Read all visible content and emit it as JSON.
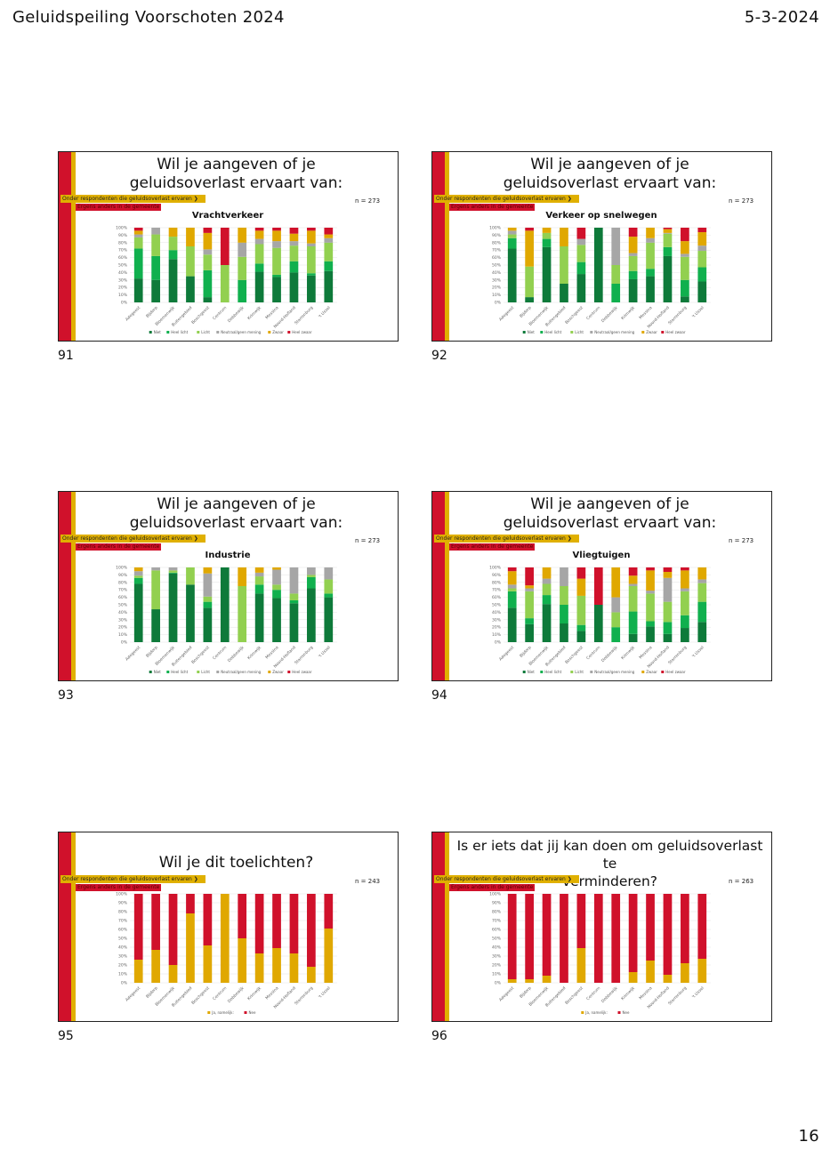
{
  "header": {
    "title": "Geluidspeiling  Voorschoten  2024",
    "date": "5-3-2024",
    "page_number": "16"
  },
  "colors": {
    "niet": "#0e7a3a",
    "heel_licht": "#10b04e",
    "licht": "#92d050",
    "neutraal": "#a6a6a6",
    "zwaar": "#e0a800",
    "heel_zwaar": "#d0112b",
    "stripe_red": "#d0112b",
    "stripe_yellow": "#e0b000"
  },
  "common": {
    "tag_filter": "Onder respondenten die geluidsoverlast ervaren  ❯",
    "tag_location": "Ergens anders in de gemeente",
    "categories": [
      "Adegeest",
      "Bijdorp",
      "Bloemenwijk",
      "Buitengebied",
      "Boschgeest",
      "Centrum",
      "Dobbewijk",
      "Krimwijk",
      "Messina",
      "Noord-Hofland",
      "Starrenburg",
      "'t Ussel"
    ],
    "ytick_labels": [
      "0%",
      "10%",
      "20%",
      "30%",
      "40%",
      "50%",
      "60%",
      "70%",
      "80%",
      "90%",
      "100%"
    ]
  },
  "slides": [
    {
      "number": "91",
      "title_lines": [
        "Wil je aangeven of je",
        "geluidsoverlast ervaart van:"
      ],
      "n": "n = 273"
    },
    {
      "number": "92",
      "title_lines": [
        "Wil je aangeven of je",
        "geluidsoverlast ervaart van:"
      ],
      "n": "n = 273"
    },
    {
      "number": "93",
      "title_lines": [
        "Wil je aangeven of je",
        "geluidsoverlast ervaart van:"
      ],
      "n": "n = 273"
    },
    {
      "number": "94",
      "title_lines": [
        "Wil je aangeven of je",
        "geluidsoverlast ervaart van:"
      ],
      "n": "n = 273"
    },
    {
      "number": "95",
      "title_lines": [
        "Wil je dit toelichten?"
      ],
      "n": "n = 243"
    },
    {
      "number": "96",
      "title_lines": [
        "Is er iets dat jij kan doen om geluidsoverlast te",
        "verminderen?"
      ],
      "n": "n = 263"
    }
  ],
  "chart_data": [
    {
      "type": "bar",
      "stacked": true,
      "title": "Vrachtverkeer",
      "ylim": [
        0,
        100
      ],
      "legend": "bottom",
      "series": [
        {
          "name": "Niet",
          "values": [
            32,
            30,
            58,
            35,
            7,
            0,
            0,
            41,
            34,
            40,
            36,
            42
          ]
        },
        {
          "name": "Heel licht",
          "values": [
            40,
            32,
            12,
            0,
            36,
            0,
            30,
            11,
            3,
            15,
            3,
            13
          ]
        },
        {
          "name": "Licht",
          "values": [
            15,
            29,
            18,
            40,
            21,
            50,
            31,
            26,
            36,
            21,
            36,
            25
          ]
        },
        {
          "name": "Neutraal/geen mening",
          "values": [
            4,
            9,
            0,
            0,
            7,
            0,
            19,
            7,
            9,
            6,
            4,
            6
          ]
        },
        {
          "name": "Zwaar",
          "values": [
            5,
            0,
            12,
            25,
            22,
            0,
            20,
            11,
            14,
            10,
            17,
            5
          ]
        },
        {
          "name": "Heel zwaar",
          "values": [
            4,
            0,
            0,
            0,
            7,
            50,
            0,
            4,
            4,
            8,
            4,
            9
          ]
        }
      ]
    },
    {
      "type": "bar",
      "stacked": true,
      "title": "Verkeer op snelwegen",
      "ylim": [
        0,
        100
      ],
      "legend": "bottom",
      "series": [
        {
          "name": "Niet",
          "values": [
            72,
            7,
            74,
            25,
            38,
            100,
            0,
            31,
            35,
            62,
            8,
            28
          ]
        },
        {
          "name": "Heel licht",
          "values": [
            14,
            0,
            11,
            0,
            16,
            0,
            25,
            11,
            10,
            12,
            22,
            19
          ]
        },
        {
          "name": "Licht",
          "values": [
            5,
            41,
            8,
            50,
            23,
            0,
            25,
            20,
            35,
            18,
            31,
            22
          ]
        },
        {
          "name": "Neutraal/geen mening",
          "values": [
            5,
            0,
            0,
            0,
            8,
            0,
            50,
            4,
            6,
            1,
            4,
            7
          ]
        },
        {
          "name": "Zwaar",
          "values": [
            4,
            48,
            7,
            25,
            0,
            0,
            0,
            22,
            14,
            5,
            17,
            18
          ]
        },
        {
          "name": "Heel zwaar",
          "values": [
            0,
            4,
            0,
            0,
            15,
            0,
            0,
            12,
            0,
            2,
            18,
            6
          ]
        }
      ]
    },
    {
      "type": "bar",
      "stacked": true,
      "title": "Industrie",
      "ylim": [
        0,
        100
      ],
      "legend": "bottom",
      "series": [
        {
          "name": "Niet",
          "values": [
            78,
            44,
            92,
            77,
            46,
            100,
            0,
            65,
            59,
            52,
            72,
            60
          ]
        },
        {
          "name": "Heel licht",
          "values": [
            8,
            0,
            1,
            0,
            8,
            0,
            0,
            12,
            11,
            4,
            15,
            5
          ]
        },
        {
          "name": "Licht",
          "values": [
            3,
            52,
            3,
            23,
            7,
            0,
            75,
            11,
            7,
            9,
            3,
            19
          ]
        },
        {
          "name": "Neutraal/geen mening",
          "values": [
            6,
            4,
            4,
            0,
            31,
            0,
            0,
            5,
            20,
            35,
            10,
            16
          ]
        },
        {
          "name": "Zwaar",
          "values": [
            5,
            0,
            0,
            0,
            8,
            0,
            25,
            7,
            3,
            0,
            0,
            0
          ]
        },
        {
          "name": "Heel zwaar",
          "values": [
            0,
            0,
            0,
            0,
            0,
            0,
            0,
            0,
            0,
            0,
            0,
            0
          ]
        }
      ]
    },
    {
      "type": "bar",
      "stacked": true,
      "title": "Vliegtuigen",
      "ylim": [
        0,
        100
      ],
      "legend": "bottom",
      "series": [
        {
          "name": "Niet",
          "values": [
            46,
            24,
            51,
            25,
            15,
            50,
            0,
            11,
            21,
            11,
            19,
            27
          ]
        },
        {
          "name": "Heel licht",
          "values": [
            22,
            8,
            12,
            25,
            8,
            0,
            20,
            30,
            7,
            16,
            17,
            27
          ]
        },
        {
          "name": "Licht",
          "values": [
            4,
            36,
            15,
            25,
            39,
            0,
            20,
            34,
            37,
            27,
            32,
            25
          ]
        },
        {
          "name": "Neutraal/geen mening",
          "values": [
            5,
            4,
            7,
            25,
            0,
            0,
            20,
            3,
            4,
            32,
            4,
            5
          ]
        },
        {
          "name": "Zwaar",
          "values": [
            18,
            4,
            15,
            0,
            23,
            0,
            40,
            11,
            27,
            8,
            24,
            16
          ]
        },
        {
          "name": "Heel zwaar",
          "values": [
            5,
            24,
            0,
            0,
            15,
            50,
            0,
            11,
            4,
            6,
            4,
            0
          ]
        }
      ]
    },
    {
      "type": "bar",
      "stacked": true,
      "title": "",
      "ylim": [
        0,
        100
      ],
      "legend": "bottom",
      "series": [
        {
          "name": "Ja, namelijk:",
          "values": [
            26,
            37,
            20,
            78,
            42,
            100,
            50,
            33,
            39,
            33,
            18,
            61
          ]
        },
        {
          "name": "Nee",
          "values": [
            74,
            63,
            80,
            22,
            58,
            0,
            50,
            67,
            61,
            67,
            82,
            39
          ]
        }
      ]
    },
    {
      "type": "bar",
      "stacked": true,
      "title": "",
      "ylim": [
        0,
        100
      ],
      "legend": "bottom",
      "series": [
        {
          "name": "Ja, namelijk:",
          "values": [
            4,
            4,
            8,
            0,
            39,
            0,
            0,
            12,
            25,
            9,
            22,
            27
          ]
        },
        {
          "name": "Nee",
          "values": [
            96,
            96,
            92,
            100,
            61,
            100,
            100,
            88,
            75,
            91,
            78,
            73
          ]
        }
      ]
    }
  ]
}
